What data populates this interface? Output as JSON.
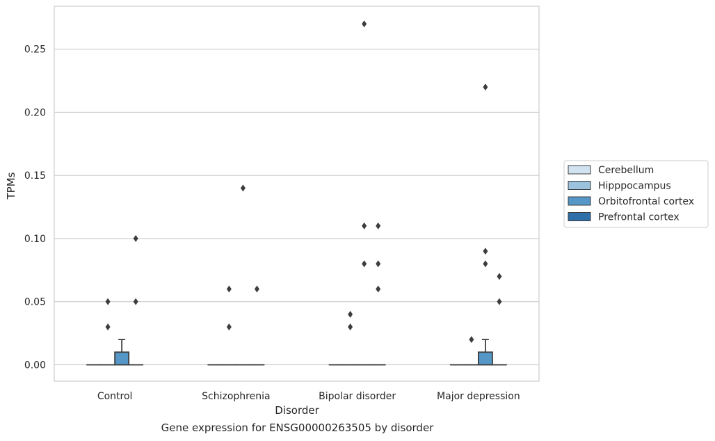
{
  "chart_data": {
    "type": "box",
    "caption": "Gene expression for ENSG00000263505 by disorder",
    "xlabel": "Disorder",
    "ylabel": "TPMs",
    "ylim": [
      -0.013,
      0.284
    ],
    "yticks": [
      "0.00",
      "0.05",
      "0.10",
      "0.15",
      "0.20",
      "0.25"
    ],
    "ytick_values": [
      0,
      0.05,
      0.1,
      0.15,
      0.2,
      0.25
    ],
    "grid": "horizontal",
    "legend_position": "right",
    "categories": [
      "Control",
      "Schizophrenia",
      "Bipolar disorder",
      "Major depression"
    ],
    "series": [
      {
        "name": "Cerebellum",
        "color": "#d1e2f1",
        "boxes": [
          {
            "q1": 0,
            "median": 0,
            "q3": 0,
            "whisker_low": 0,
            "whisker_high": 0,
            "outliers": []
          },
          {
            "q1": 0,
            "median": 0,
            "q3": 0,
            "whisker_low": 0,
            "whisker_high": 0,
            "outliers": []
          },
          {
            "q1": 0,
            "median": 0,
            "q3": 0,
            "whisker_low": 0,
            "whisker_high": 0,
            "outliers": []
          },
          {
            "q1": 0,
            "median": 0,
            "q3": 0,
            "whisker_low": 0,
            "whisker_high": 0,
            "outliers": []
          }
        ]
      },
      {
        "name": "Hipppocampus",
        "color": "#9bc3de",
        "boxes": [
          {
            "q1": 0,
            "median": 0,
            "q3": 0,
            "whisker_low": 0,
            "whisker_high": 0,
            "outliers": [
              0.03,
              0.05
            ]
          },
          {
            "q1": 0,
            "median": 0,
            "q3": 0,
            "whisker_low": 0,
            "whisker_high": 0,
            "outliers": [
              0.03,
              0.06
            ]
          },
          {
            "q1": 0,
            "median": 0,
            "q3": 0,
            "whisker_low": 0,
            "whisker_high": 0,
            "outliers": [
              0.03,
              0.04
            ]
          },
          {
            "q1": 0,
            "median": 0,
            "q3": 0,
            "whisker_low": 0,
            "whisker_high": 0,
            "outliers": [
              0.02
            ]
          }
        ]
      },
      {
        "name": "Orbitofrontal cortex",
        "color": "#5597c6",
        "boxes": [
          {
            "q1": 0,
            "median": 0,
            "q3": 0.01,
            "whisker_low": 0,
            "whisker_high": 0.02,
            "outliers": []
          },
          {
            "q1": 0,
            "median": 0,
            "q3": 0,
            "whisker_low": 0,
            "whisker_high": 0,
            "outliers": [
              0.14
            ]
          },
          {
            "q1": 0,
            "median": 0,
            "q3": 0,
            "whisker_low": 0,
            "whisker_high": 0,
            "outliers": [
              0.08,
              0.11,
              0.27
            ]
          },
          {
            "q1": 0,
            "median": 0,
            "q3": 0.01,
            "whisker_low": 0,
            "whisker_high": 0.02,
            "outliers": [
              0.08,
              0.09,
              0.22
            ]
          }
        ]
      },
      {
        "name": "Prefrontal cortex",
        "color": "#2e6ea9",
        "boxes": [
          {
            "q1": 0,
            "median": 0,
            "q3": 0,
            "whisker_low": 0,
            "whisker_high": 0,
            "outliers": [
              0.05,
              0.1
            ]
          },
          {
            "q1": 0,
            "median": 0,
            "q3": 0,
            "whisker_low": 0,
            "whisker_high": 0,
            "outliers": [
              0.06
            ]
          },
          {
            "q1": 0,
            "median": 0,
            "q3": 0,
            "whisker_low": 0,
            "whisker_high": 0,
            "outliers": [
              0.06,
              0.08,
              0.11
            ]
          },
          {
            "q1": 0,
            "median": 0,
            "q3": 0,
            "whisker_low": 0,
            "whisker_high": 0,
            "outliers": [
              0.05,
              0.07
            ]
          }
        ]
      }
    ]
  }
}
